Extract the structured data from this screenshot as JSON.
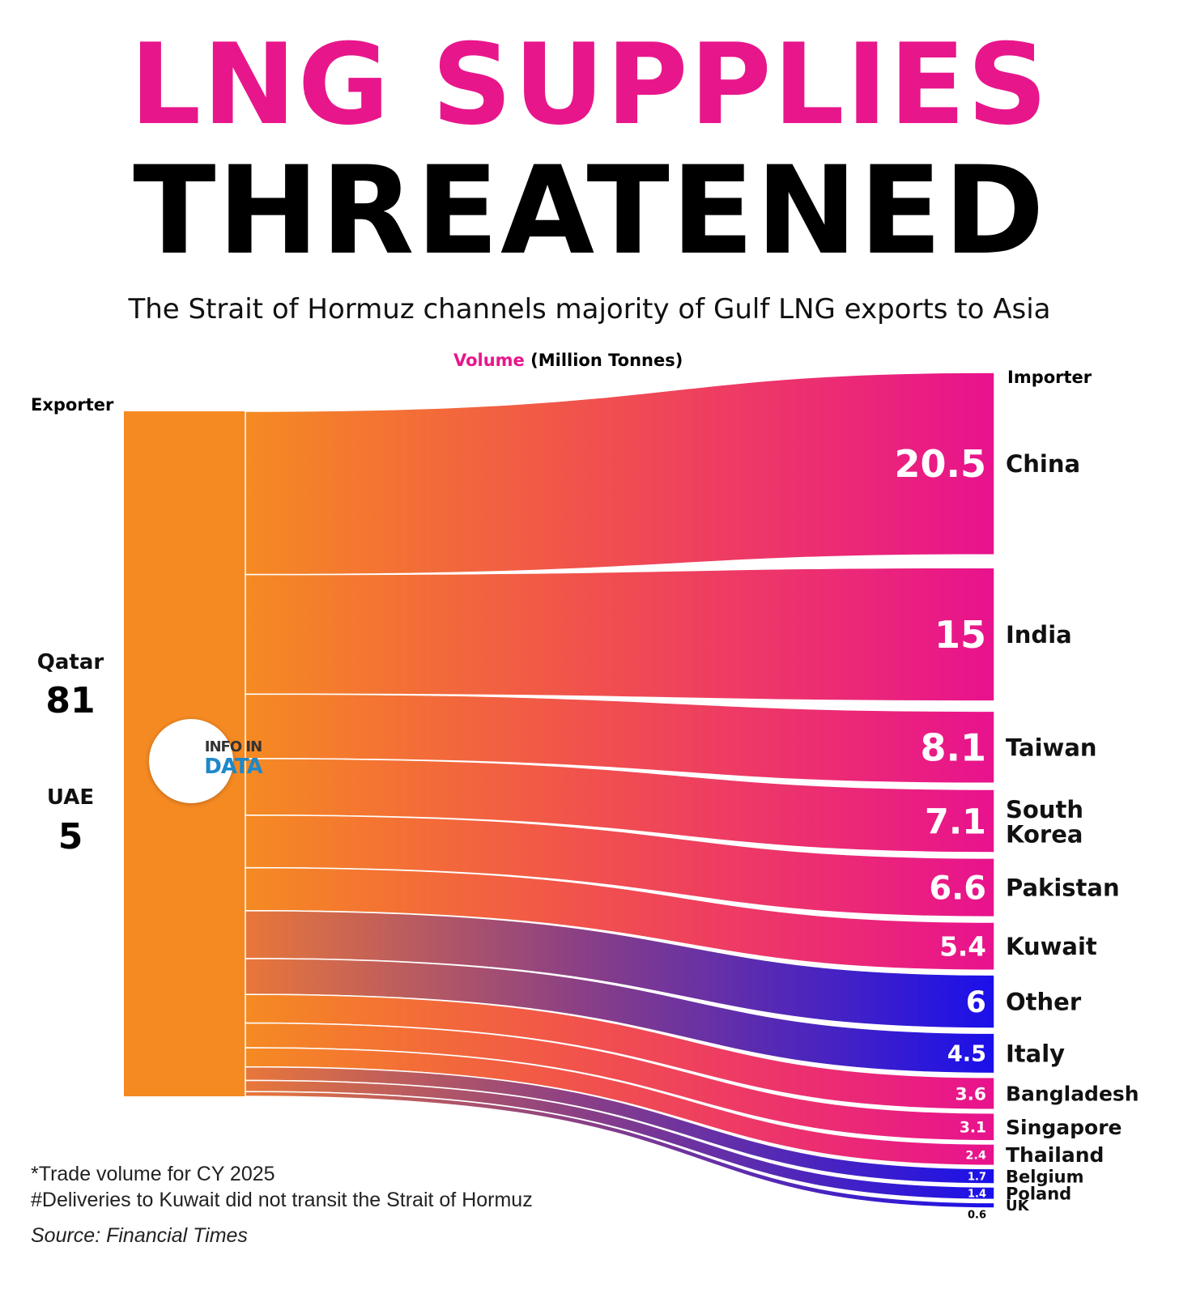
{
  "title_line1": "LNG SUPPLIES",
  "title_line2": "THREATENED",
  "subtitle": "The Strait of Hormuz channels majority of Gulf LNG exports to Asia",
  "volume_label": {
    "accent": "Volume",
    "rest": " (Million Tonnes)"
  },
  "exporter_heading": "Exporter",
  "importer_heading": "Importer",
  "logo": {
    "line1": "INFO IN",
    "line2": "DATA"
  },
  "footnotes": [
    "*Trade volume for CY 2025",
    "#Deliveries to Kuwait did not transit the Strait of Hormuz"
  ],
  "source": "Source: Financial Times",
  "colors": {
    "pink": "#e8168b",
    "orange": "#f58a22",
    "blue": "#1e10e6",
    "black": "#000000"
  },
  "chart_data": {
    "type": "sankey",
    "title": "LNG SUPPLIES THREATENED",
    "units": "Million Tonnes",
    "exporters": [
      {
        "name": "Qatar",
        "value": "81",
        "numeric": 81
      },
      {
        "name": "UAE",
        "value": "5",
        "numeric": 5
      }
    ],
    "importers": [
      {
        "name": "China",
        "label": "20.5",
        "value": 20.5,
        "color": "pink"
      },
      {
        "name": "India",
        "label": "15",
        "value": 15,
        "color": "pink"
      },
      {
        "name": "Taiwan",
        "label": "8.1",
        "value": 8.1,
        "color": "pink"
      },
      {
        "name": "South Korea",
        "label": "7.1",
        "value": 7.1,
        "color": "pink"
      },
      {
        "name": "Pakistan",
        "label": "6.6",
        "value": 6.6,
        "color": "pink"
      },
      {
        "name": "Kuwait",
        "label": "5.4",
        "value": 5.4,
        "color": "pink"
      },
      {
        "name": "Other",
        "label": "6",
        "value": 6,
        "color": "blue"
      },
      {
        "name": "Italy",
        "label": "4.5",
        "value": 4.5,
        "color": "blue"
      },
      {
        "name": "Bangladesh",
        "label": "3.6",
        "value": 3.6,
        "color": "pink"
      },
      {
        "name": "Singapore",
        "label": "3.1",
        "value": 3.1,
        "color": "pink"
      },
      {
        "name": "Thailand",
        "label": "2.4",
        "value": 2.4,
        "color": "pink"
      },
      {
        "name": "Belgium",
        "label": "1.7",
        "value": 1.7,
        "color": "blue"
      },
      {
        "name": "Poland",
        "label": "1.4",
        "value": 1.4,
        "color": "blue"
      },
      {
        "name": "UK",
        "label": "0.6",
        "value": 0.6,
        "color": "blue"
      }
    ]
  }
}
